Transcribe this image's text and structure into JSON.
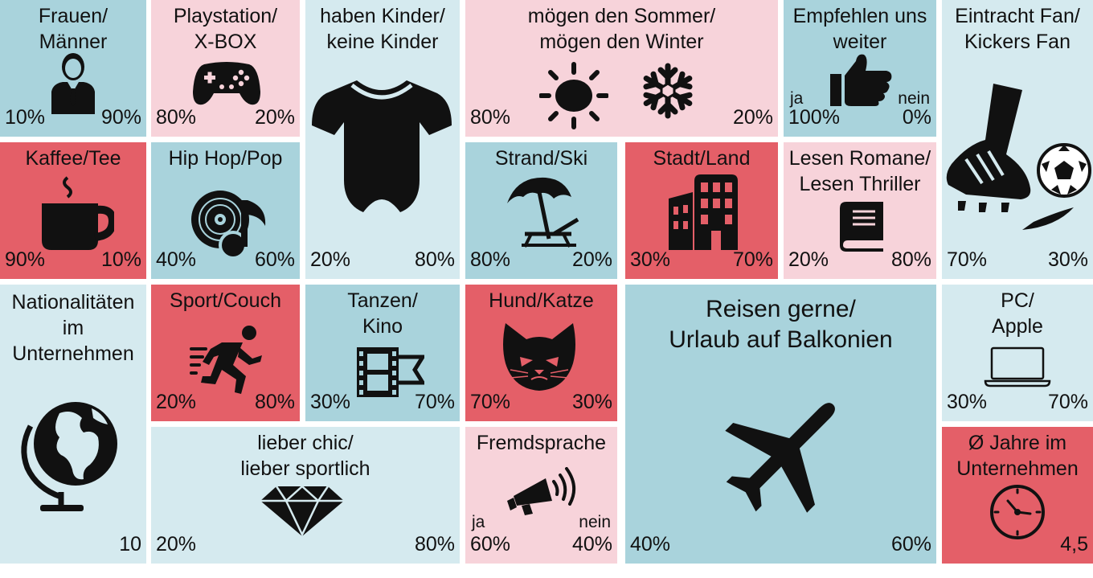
{
  "tiles": {
    "gender": {
      "line1": "Frauen/",
      "line2": "Männer",
      "left": "10%",
      "right": "90%",
      "icon": "person-suit-icon"
    },
    "console": {
      "line1": "Playstation/",
      "line2": "X-BOX",
      "left": "80%",
      "right": "20%",
      "icon": "gamepad-icon"
    },
    "kids": {
      "line1": "haben Kinder/",
      "line2": "keine Kinder",
      "left": "20%",
      "right": "80%",
      "icon": "baby-onesie-icon"
    },
    "season": {
      "line1": "mögen den Sommer/",
      "line2": "mögen den Winter",
      "left": "80%",
      "right": "20%",
      "icon_left": "sun-icon",
      "icon_right": "snowflake-icon"
    },
    "recommend": {
      "line1": "Empfehlen uns",
      "line2": "weiter",
      "sub_left": "ja",
      "sub_right": "nein",
      "left": "100%",
      "right": "0%",
      "icon": "thumbs-up-icon"
    },
    "football": {
      "line1": "Eintracht Fan/",
      "line2": "Kickers Fan",
      "left": "70%",
      "right": "30%",
      "icon": "football-kick-icon"
    },
    "coffee": {
      "line1": "Kaffee/Tee",
      "left": "90%",
      "right": "10%",
      "icon": "mug-icon"
    },
    "music": {
      "line1": "Hip Hop/Pop",
      "left": "40%",
      "right": "60%",
      "icon": "vinyl-note-icon"
    },
    "beach": {
      "line1": "Strand/Ski",
      "left": "80%",
      "right": "20%",
      "icon": "beach-umbrella-icon"
    },
    "city": {
      "line1": "Stadt/Land",
      "left": "30%",
      "right": "70%",
      "icon": "buildings-icon"
    },
    "books": {
      "line1": "Lesen Romane/",
      "line2": "Lesen Thriller",
      "left": "20%",
      "right": "80%",
      "icon": "book-icon"
    },
    "nations": {
      "line1": "Nationalitäten",
      "line2": "im",
      "line3": "Unternehmen",
      "value": "10",
      "icon": "globe-icon"
    },
    "sport": {
      "line1": "Sport/Couch",
      "left": "20%",
      "right": "80%",
      "icon": "runner-icon"
    },
    "dance": {
      "line1": "Tanzen/",
      "line2": "Kino",
      "left": "30%",
      "right": "70%",
      "icon": "film-strip-icon"
    },
    "pets": {
      "line1": "Hund/Katze",
      "left": "70%",
      "right": "30%",
      "icon": "cat-face-icon"
    },
    "travel": {
      "line1": "Reisen gerne/",
      "line2": "Urlaub auf Balkonien",
      "left": "40%",
      "right": "60%",
      "icon": "airplane-icon"
    },
    "computer": {
      "line1": "PC/",
      "line2": "Apple",
      "left": "30%",
      "right": "70%",
      "icon": "laptop-icon"
    },
    "style": {
      "line1": "lieber chic/",
      "line2": "lieber sportlich",
      "left": "20%",
      "right": "80%",
      "icon": "diamond-icon"
    },
    "language": {
      "line1": "Fremdsprache",
      "sub_left": "ja",
      "sub_right": "nein",
      "left": "60%",
      "right": "40%",
      "icon": "megaphone-icon"
    },
    "years": {
      "line1": "Ø Jahre im",
      "line2": "Unternehmen",
      "value": "4,5",
      "icon": "clock-icon"
    }
  },
  "colors": {
    "blue": "#a9d3dc",
    "light_blue": "#d5eaef",
    "pink": "#f7d3da",
    "red": "#e45f68",
    "icon": "#111111"
  }
}
